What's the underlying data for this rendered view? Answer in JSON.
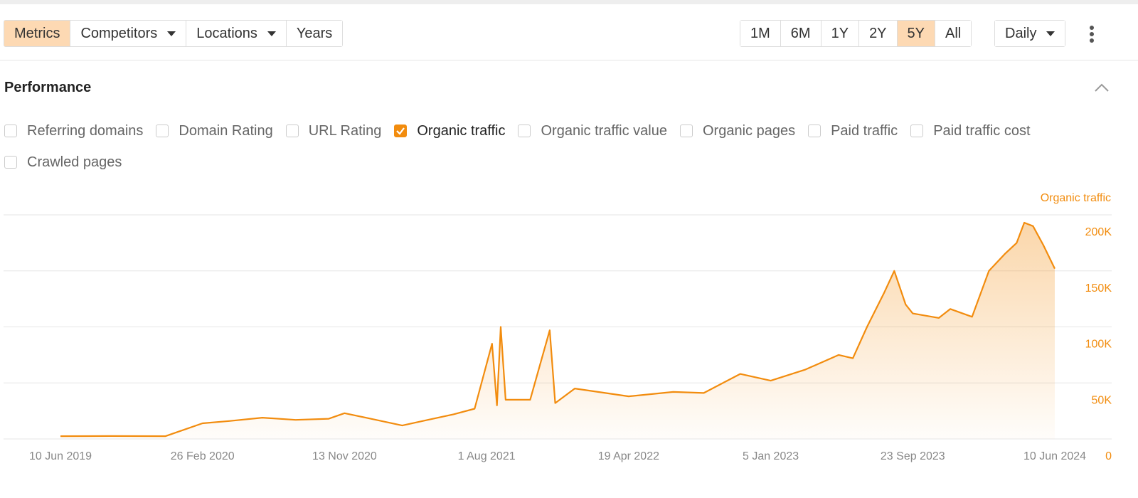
{
  "toolbar": {
    "filters": [
      {
        "label": "Metrics",
        "active": true,
        "dropdown": false
      },
      {
        "label": "Competitors",
        "active": false,
        "dropdown": true
      },
      {
        "label": "Locations",
        "active": false,
        "dropdown": true
      },
      {
        "label": "Years",
        "active": false,
        "dropdown": false
      }
    ],
    "ranges": [
      {
        "label": "1M",
        "active": false
      },
      {
        "label": "6M",
        "active": false
      },
      {
        "label": "1Y",
        "active": false
      },
      {
        "label": "2Y",
        "active": false
      },
      {
        "label": "5Y",
        "active": true
      },
      {
        "label": "All",
        "active": false
      }
    ],
    "interval": "Daily"
  },
  "section": {
    "title": "Performance",
    "metrics": [
      {
        "label": "Referring domains",
        "checked": false
      },
      {
        "label": "Domain Rating",
        "checked": false
      },
      {
        "label": "URL Rating",
        "checked": false
      },
      {
        "label": "Organic traffic",
        "checked": true
      },
      {
        "label": "Organic traffic value",
        "checked": false
      },
      {
        "label": "Organic pages",
        "checked": false
      },
      {
        "label": "Paid traffic",
        "checked": false
      },
      {
        "label": "Paid traffic cost",
        "checked": false
      },
      {
        "label": "Crawled pages",
        "checked": false
      }
    ]
  },
  "chart_data": {
    "type": "area",
    "x": [
      "2019-06-10",
      "2019-09-10",
      "2019-12-20",
      "2020-02-26",
      "2020-04-15",
      "2020-06-15",
      "2020-08-15",
      "2020-10-15",
      "2020-11-13",
      "2021-01-10",
      "2021-02-27",
      "2021-04-15",
      "2021-06-01",
      "2021-07-10",
      "2021-08-11",
      "2021-08-20",
      "2021-08-27",
      "2021-09-05",
      "2021-10-20",
      "2021-11-25",
      "2021-12-05",
      "2022-01-10",
      "2022-04-19",
      "2022-07-10",
      "2022-09-04",
      "2022-11-10",
      "2023-01-05",
      "2023-03-10",
      "2023-05-10",
      "2023-06-05",
      "2023-07-01",
      "2023-08-01",
      "2023-08-20",
      "2023-09-10",
      "2023-09-23",
      "2023-11-10",
      "2023-12-01",
      "2024-01-10",
      "2024-02-10",
      "2024-03-10",
      "2024-04-01",
      "2024-04-15",
      "2024-05-01",
      "2024-05-20",
      "2024-06-10"
    ],
    "series": [
      {
        "name": "Organic traffic",
        "color": "#f28c0e",
        "values": [
          2500,
          2600,
          2500,
          14000,
          16000,
          19000,
          17000,
          18000,
          23000,
          17000,
          12000,
          17000,
          22000,
          27000,
          85000,
          30000,
          100000,
          35000,
          35000,
          97000,
          32000,
          45000,
          38000,
          42000,
          41000,
          58000,
          52000,
          62000,
          75000,
          72000,
          100000,
          130000,
          150000,
          120000,
          112000,
          108000,
          116000,
          109000,
          150000,
          165000,
          175000,
          193000,
          190000,
          173000,
          152000
        ]
      }
    ],
    "xlim": [
      "2019-06-10",
      "2024-06-10"
    ],
    "xticks": [
      {
        "value": "2019-06-10",
        "label": "10 Jun 2019"
      },
      {
        "value": "2020-02-26",
        "label": "26 Feb 2020"
      },
      {
        "value": "2020-11-13",
        "label": "13 Nov 2020"
      },
      {
        "value": "2021-08-01",
        "label": "1 Aug 2021"
      },
      {
        "value": "2022-04-19",
        "label": "19 Apr 2022"
      },
      {
        "value": "2023-01-05",
        "label": "5 Jan 2023"
      },
      {
        "value": "2023-09-23",
        "label": "23 Sep 2023"
      },
      {
        "value": "2024-06-10",
        "label": "10 Jun 2024"
      }
    ],
    "ylim": [
      0,
      200000
    ],
    "yticks": [
      0,
      {
        "value": 50000,
        "label": "50K"
      },
      {
        "value": 100000,
        "label": "100K"
      },
      {
        "value": 150000,
        "label": "150K"
      },
      {
        "value": 200000,
        "label": "200K"
      }
    ],
    "grid": true
  }
}
